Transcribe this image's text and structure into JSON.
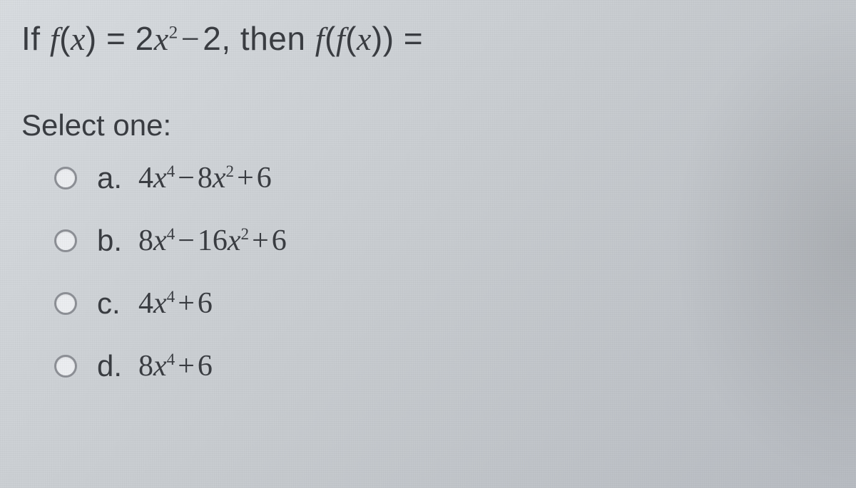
{
  "question": {
    "prefix": "If ",
    "fx_f": "f",
    "fx_open": "(",
    "fx_var": "x",
    "fx_close": ")",
    "eq1": " = ",
    "term1_coef": "2",
    "term1_var": "x",
    "term1_exp": "2",
    "minus": "−",
    "term2": "2",
    "comma_then": ", then ",
    "ffx_f1": "f",
    "ffx_open1": "(",
    "ffx_f2": "f",
    "ffx_open2": "(",
    "ffx_var": "x",
    "ffx_close2": ")",
    "ffx_close1": ")",
    "eq2": " ="
  },
  "select_label": "Select one:",
  "options": [
    {
      "letter": "a.",
      "t1_coef": "4",
      "t1_var": "x",
      "t1_exp": "4",
      "op1": "−",
      "t2_coef": "8",
      "t2_var": "x",
      "t2_exp": "2",
      "op2": "+",
      "t3": "6"
    },
    {
      "letter": "b.",
      "t1_coef": "8",
      "t1_var": "x",
      "t1_exp": "4",
      "op1": "−",
      "t2_coef": "16",
      "t2_var": "x",
      "t2_exp": "2",
      "op2": "+",
      "t3": "6"
    },
    {
      "letter": "c.",
      "t1_coef": "4",
      "t1_var": "x",
      "t1_exp": "4",
      "op1": "+",
      "t2_coef": "",
      "t2_var": "",
      "t2_exp": "",
      "op2": "",
      "t3": "6"
    },
    {
      "letter": "d.",
      "t1_coef": "8",
      "t1_var": "x",
      "t1_exp": "4",
      "op1": "+",
      "t2_coef": "",
      "t2_var": "",
      "t2_exp": "",
      "op2": "",
      "t3": "6"
    }
  ],
  "colors": {
    "bg_light": "#d8dce0",
    "bg_dark": "#b8bcc2",
    "text": "#3a3d42",
    "radio_border": "#8d9096",
    "radio_fill": "#eceef1"
  }
}
